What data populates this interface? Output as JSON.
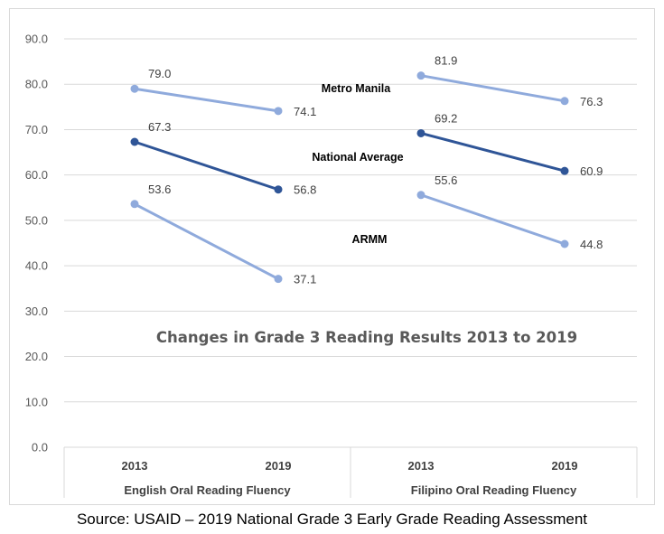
{
  "chart_data": {
    "type": "line",
    "title": "Changes in Grade 3 Reading Results 2013 to 2019",
    "ylim": [
      0,
      90
    ],
    "yticks": [
      "0.0",
      "10.0",
      "20.0",
      "30.0",
      "40.0",
      "50.0",
      "60.0",
      "70.0",
      "80.0",
      "90.0"
    ],
    "grid": true,
    "groups": [
      {
        "label": "English Oral Reading Fluency",
        "categories": [
          "2013",
          "2019"
        ]
      },
      {
        "label": "Filipino Oral Reading Fluency",
        "categories": [
          "2013",
          "2019"
        ]
      }
    ],
    "series": [
      {
        "name": "Metro Manila",
        "color": "#8faadc",
        "groups": [
          {
            "values": [
              79.0,
              74.1
            ],
            "labels": [
              "79.0",
              "74.1"
            ]
          },
          {
            "values": [
              81.9,
              76.3
            ],
            "labels": [
              "81.9",
              "76.3"
            ]
          }
        ]
      },
      {
        "name": "National Average",
        "color": "#2f5597",
        "groups": [
          {
            "values": [
              67.3,
              56.8
            ],
            "labels": [
              "67.3",
              "56.8"
            ]
          },
          {
            "values": [
              69.2,
              60.9
            ],
            "labels": [
              "69.2",
              "60.9"
            ]
          }
        ]
      },
      {
        "name": "ARMM",
        "color": "#8faadc",
        "groups": [
          {
            "values": [
              53.6,
              37.1
            ],
            "labels": [
              "53.6",
              "37.1"
            ]
          },
          {
            "values": [
              55.6,
              44.8
            ],
            "labels": [
              "55.6",
              "44.8"
            ]
          }
        ]
      }
    ]
  },
  "source": "Source: USAID – 2019 National Grade 3 Early Grade Reading Assessment"
}
